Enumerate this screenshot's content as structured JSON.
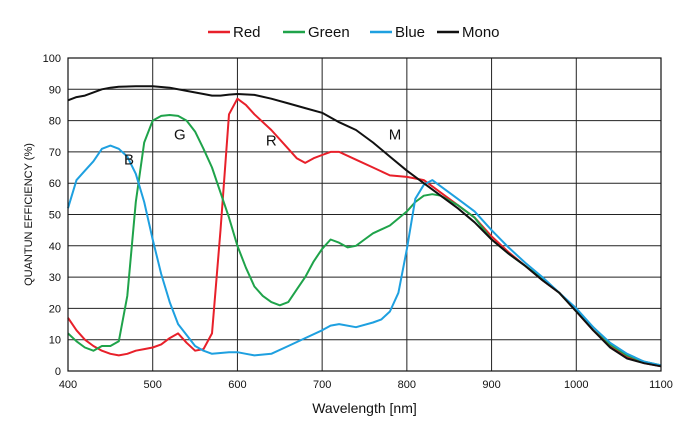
{
  "chart_data": {
    "type": "line",
    "title": "",
    "xlabel": "Wavelength [nm]",
    "ylabel": "QUANTUN EFFICIENCY (%)",
    "xlim": [
      400,
      1100
    ],
    "ylim": [
      0,
      100
    ],
    "xticks": [
      "400",
      "500",
      "600",
      "700",
      "800",
      "900",
      "1000",
      "1100"
    ],
    "yticks": [
      "0",
      "10",
      "20",
      "30",
      "40",
      "50",
      "60",
      "70",
      "80",
      "90",
      "100"
    ],
    "grid": true,
    "legend_position": "top-center",
    "series": [
      {
        "name": "Red",
        "color": "#e8202a",
        "points": [
          [
            400,
            17
          ],
          [
            410,
            13
          ],
          [
            420,
            10
          ],
          [
            430,
            8
          ],
          [
            440,
            6.5
          ],
          [
            450,
            5.5
          ],
          [
            460,
            5
          ],
          [
            470,
            5.5
          ],
          [
            480,
            6.5
          ],
          [
            490,
            7
          ],
          [
            500,
            7.5
          ],
          [
            510,
            8.5
          ],
          [
            520,
            10.5
          ],
          [
            530,
            12
          ],
          [
            540,
            9
          ],
          [
            550,
            6.5
          ],
          [
            560,
            7
          ],
          [
            570,
            12
          ],
          [
            580,
            45
          ],
          [
            590,
            82
          ],
          [
            600,
            87
          ],
          [
            610,
            85
          ],
          [
            620,
            82
          ],
          [
            640,
            77
          ],
          [
            660,
            71
          ],
          [
            670,
            68
          ],
          [
            680,
            66.5
          ],
          [
            690,
            68
          ],
          [
            700,
            69
          ],
          [
            710,
            70
          ],
          [
            720,
            70
          ],
          [
            740,
            67.5
          ],
          [
            760,
            65
          ],
          [
            780,
            62.5
          ],
          [
            800,
            62
          ],
          [
            820,
            61
          ],
          [
            840,
            57
          ],
          [
            860,
            53
          ],
          [
            880,
            49
          ],
          [
            900,
            43
          ],
          [
            920,
            38
          ],
          [
            940,
            33.5
          ],
          [
            960,
            29
          ],
          [
            980,
            25
          ],
          [
            1000,
            19
          ],
          [
            1020,
            13
          ],
          [
            1040,
            8
          ],
          [
            1060,
            4.5
          ],
          [
            1080,
            2.5
          ],
          [
            1100,
            1.5
          ]
        ]
      },
      {
        "name": "Green",
        "color": "#1fa34a",
        "points": [
          [
            400,
            12
          ],
          [
            410,
            9.5
          ],
          [
            420,
            7.5
          ],
          [
            430,
            6.5
          ],
          [
            440,
            8
          ],
          [
            450,
            8
          ],
          [
            460,
            9.5
          ],
          [
            470,
            24
          ],
          [
            480,
            54
          ],
          [
            490,
            73
          ],
          [
            500,
            80
          ],
          [
            510,
            81.5
          ],
          [
            520,
            81.8
          ],
          [
            530,
            81.5
          ],
          [
            540,
            80
          ],
          [
            550,
            76.5
          ],
          [
            560,
            71
          ],
          [
            570,
            65
          ],
          [
            580,
            57
          ],
          [
            590,
            49
          ],
          [
            600,
            40
          ],
          [
            610,
            33
          ],
          [
            620,
            27
          ],
          [
            630,
            24
          ],
          [
            640,
            22
          ],
          [
            650,
            21
          ],
          [
            660,
            22
          ],
          [
            670,
            26
          ],
          [
            680,
            30
          ],
          [
            690,
            35
          ],
          [
            700,
            39
          ],
          [
            710,
            42
          ],
          [
            720,
            41
          ],
          [
            730,
            39.5
          ],
          [
            740,
            40
          ],
          [
            750,
            42
          ],
          [
            760,
            44
          ],
          [
            780,
            46.5
          ],
          [
            800,
            51
          ],
          [
            810,
            54
          ],
          [
            820,
            56
          ],
          [
            830,
            56.5
          ],
          [
            840,
            56
          ],
          [
            860,
            53
          ],
          [
            880,
            49
          ],
          [
            900,
            42
          ],
          [
            920,
            37.5
          ],
          [
            940,
            33.5
          ],
          [
            960,
            29.5
          ],
          [
            980,
            25
          ],
          [
            1000,
            19
          ],
          [
            1020,
            14
          ],
          [
            1040,
            8.5
          ],
          [
            1060,
            5
          ],
          [
            1080,
            3
          ],
          [
            1100,
            1.8
          ]
        ]
      },
      {
        "name": "Blue",
        "color": "#1ea0e0",
        "points": [
          [
            400,
            52
          ],
          [
            410,
            61
          ],
          [
            420,
            64
          ],
          [
            430,
            67
          ],
          [
            440,
            71
          ],
          [
            450,
            72
          ],
          [
            460,
            71
          ],
          [
            470,
            68.5
          ],
          [
            480,
            63
          ],
          [
            490,
            54
          ],
          [
            500,
            42
          ],
          [
            510,
            31
          ],
          [
            520,
            22
          ],
          [
            530,
            15
          ],
          [
            540,
            11.5
          ],
          [
            550,
            8
          ],
          [
            560,
            6.5
          ],
          [
            570,
            5.5
          ],
          [
            590,
            6
          ],
          [
            600,
            6
          ],
          [
            610,
            5.5
          ],
          [
            620,
            5
          ],
          [
            640,
            5.5
          ],
          [
            660,
            8
          ],
          [
            680,
            10.5
          ],
          [
            700,
            13
          ],
          [
            710,
            14.5
          ],
          [
            720,
            15
          ],
          [
            740,
            14
          ],
          [
            760,
            15.5
          ],
          [
            770,
            16.5
          ],
          [
            780,
            19
          ],
          [
            790,
            25
          ],
          [
            800,
            39
          ],
          [
            810,
            55
          ],
          [
            820,
            59.5
          ],
          [
            830,
            61
          ],
          [
            840,
            59
          ],
          [
            860,
            55
          ],
          [
            880,
            51
          ],
          [
            900,
            45
          ],
          [
            920,
            39.5
          ],
          [
            940,
            34.5
          ],
          [
            960,
            30
          ],
          [
            980,
            25
          ],
          [
            1000,
            20
          ],
          [
            1020,
            14
          ],
          [
            1040,
            9
          ],
          [
            1060,
            5.5
          ],
          [
            1080,
            3
          ],
          [
            1100,
            1.8
          ]
        ]
      },
      {
        "name": "Mono",
        "color": "#111111",
        "points": [
          [
            400,
            86.5
          ],
          [
            410,
            87.5
          ],
          [
            420,
            88
          ],
          [
            430,
            89
          ],
          [
            440,
            90
          ],
          [
            450,
            90.5
          ],
          [
            460,
            90.8
          ],
          [
            480,
            91
          ],
          [
            490,
            91
          ],
          [
            500,
            91
          ],
          [
            520,
            90.5
          ],
          [
            540,
            89.5
          ],
          [
            560,
            88.5
          ],
          [
            570,
            88
          ],
          [
            580,
            88
          ],
          [
            590,
            88.3
          ],
          [
            600,
            88.5
          ],
          [
            620,
            88.2
          ],
          [
            640,
            87
          ],
          [
            660,
            85.5
          ],
          [
            680,
            84
          ],
          [
            700,
            82.5
          ],
          [
            720,
            79.5
          ],
          [
            740,
            77
          ],
          [
            760,
            73
          ],
          [
            780,
            68.5
          ],
          [
            800,
            64
          ],
          [
            820,
            60
          ],
          [
            840,
            56
          ],
          [
            860,
            52
          ],
          [
            880,
            47.5
          ],
          [
            900,
            42
          ],
          [
            920,
            37.5
          ],
          [
            940,
            33.5
          ],
          [
            960,
            29
          ],
          [
            980,
            25
          ],
          [
            1000,
            19
          ],
          [
            1020,
            13
          ],
          [
            1040,
            7.5
          ],
          [
            1060,
            4
          ],
          [
            1080,
            2.5
          ],
          [
            1100,
            1.5
          ]
        ]
      }
    ],
    "annotations": [
      {
        "text": "B",
        "x": 472,
        "y": 66
      },
      {
        "text": "G",
        "x": 532,
        "y": 74
      },
      {
        "text": "R",
        "x": 640,
        "y": 72
      },
      {
        "text": "M",
        "x": 786,
        "y": 74
      }
    ]
  }
}
